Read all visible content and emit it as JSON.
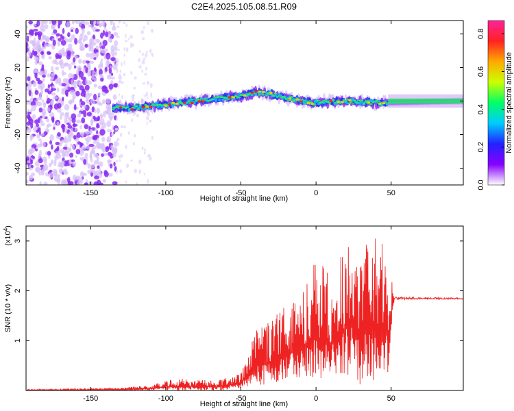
{
  "title": "C2E4.2025.105.08.51.R09",
  "colors": {
    "snr_line": "#ee2222",
    "colorbar": [
      "#ffffff",
      "#8800ff",
      "#2222ff",
      "#00ccff",
      "#00ff66",
      "#ccff00",
      "#ffaa00",
      "#ff2222",
      "#ff2299"
    ]
  },
  "chart_data": [
    {
      "type": "heatmap",
      "name": "spectrogram",
      "xlabel": "Height of straight line (km)",
      "ylabel": "Frequency (Hz)",
      "xlim": [
        -193,
        98
      ],
      "ylim": [
        -50,
        48
      ],
      "xticks": [
        -150,
        -100,
        -50,
        0,
        50
      ],
      "yticks": [
        -40,
        -20,
        0,
        20,
        40
      ],
      "colorbar": {
        "label": "Normalized spectral amplitude",
        "range": [
          0.0,
          0.87
        ],
        "ticks": [
          0.0,
          0.2,
          0.4,
          0.6,
          0.8
        ]
      },
      "ridge": {
        "x": [
          -135,
          -120,
          -100,
          -80,
          -60,
          -50,
          -40,
          -30,
          -20,
          -10,
          0,
          20,
          40,
          50,
          98
        ],
        "y": [
          -4,
          -4,
          -2,
          0,
          2,
          3,
          5,
          4,
          2,
          0,
          -1,
          0,
          -1,
          -1,
          0
        ]
      }
    },
    {
      "type": "line",
      "name": "snr",
      "xlabel": "Height of straight line (km)",
      "ylabel": "SNR (10 * v/v)",
      "scale_label": "(x10",
      "scale_exp": "4",
      "scale_suffix": ")",
      "xlim": [
        -193,
        98
      ],
      "ylim": [
        0,
        3.3
      ],
      "xticks": [
        -150,
        -100,
        -50,
        0,
        50
      ],
      "yticks": [
        1,
        2,
        3
      ],
      "envelope": {
        "x": [
          -193,
          -130,
          -120,
          -110,
          -100,
          -90,
          -80,
          -70,
          -60,
          -50,
          -40,
          -30,
          -20,
          -10,
          0,
          10,
          20,
          30,
          40,
          48,
          52,
          98
        ],
        "max": [
          0.02,
          0.05,
          0.08,
          0.1,
          0.22,
          0.25,
          0.22,
          0.2,
          0.25,
          0.35,
          1.2,
          1.4,
          1.75,
          1.9,
          2.7,
          2.3,
          3.1,
          3.3,
          3.3,
          2.8,
          1.88,
          1.86
        ],
        "min": [
          0.0,
          0.0,
          0.0,
          0.0,
          0.0,
          0.0,
          0.0,
          0.0,
          0.0,
          0.05,
          0.1,
          0.1,
          0.2,
          0.2,
          0.2,
          0.25,
          0.3,
          0.1,
          0.2,
          0.3,
          1.8,
          1.82
        ]
      }
    }
  ]
}
